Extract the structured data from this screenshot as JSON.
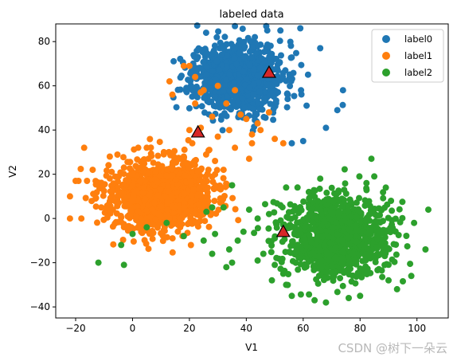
{
  "watermark": "CSDN @树下一朵云",
  "chart_data": {
    "type": "scatter",
    "title": "labeled data",
    "xlabel": "V1",
    "ylabel": "V2",
    "xlim": [
      -27,
      111
    ],
    "ylim": [
      -45,
      88
    ],
    "xticks": [
      -20,
      0,
      20,
      40,
      60,
      80,
      100
    ],
    "yticks": [
      -40,
      -20,
      0,
      20,
      40,
      60,
      80
    ],
    "xtick_labels": [
      "−20",
      "0",
      "20",
      "40",
      "60",
      "80",
      "100"
    ],
    "ytick_labels": [
      "−40",
      "−20",
      "0",
      "20",
      "40",
      "60",
      "80"
    ],
    "grid": false,
    "legend_position": "top-right",
    "series": [
      {
        "name": "label0",
        "color": "#1f77b4",
        "cluster": {
          "center": [
            37,
            64
          ],
          "spread": [
            8,
            8
          ],
          "count": 900,
          "seed": 11
        },
        "points": [
          [
            36,
            87
          ],
          [
            47,
            87
          ],
          [
            52,
            85
          ],
          [
            59,
            86
          ],
          [
            66,
            77
          ],
          [
            74,
            58
          ],
          [
            72,
            49
          ],
          [
            68,
            41
          ],
          [
            60,
            35
          ],
          [
            56,
            34
          ],
          [
            35,
            53
          ],
          [
            32,
            77
          ],
          [
            33,
            88
          ],
          [
            23,
            73
          ],
          [
            26,
            65
          ],
          [
            43,
            82
          ]
        ]
      },
      {
        "name": "label1",
        "color": "#ff7f0e",
        "cluster": {
          "center": [
            10,
            10
          ],
          "spread": [
            9,
            8
          ],
          "count": 1100,
          "seed": 23
        },
        "points": [
          [
            -22,
            10
          ],
          [
            -22,
            0
          ],
          [
            -18,
            0
          ],
          [
            -17,
            32
          ],
          [
            -19,
            17
          ],
          [
            -13,
            9
          ],
          [
            2,
            32
          ],
          [
            5,
            32
          ],
          [
            11,
            30
          ],
          [
            11,
            29
          ],
          [
            19,
            25
          ],
          [
            29,
            26
          ],
          [
            41,
            27
          ],
          [
            42,
            34
          ],
          [
            42,
            38
          ],
          [
            50,
            36
          ],
          [
            53,
            34
          ],
          [
            38,
            47
          ],
          [
            45,
            40
          ],
          [
            34,
            40
          ],
          [
            30,
            37
          ],
          [
            36,
            32
          ],
          [
            20,
            40
          ],
          [
            24,
            57
          ],
          [
            22,
            64
          ],
          [
            18,
            69
          ],
          [
            13,
            62
          ],
          [
            20,
            69
          ],
          [
            25,
            58
          ],
          [
            33,
            52
          ],
          [
            28,
            46
          ],
          [
            22,
            52
          ],
          [
            40,
            45
          ],
          [
            44,
            43
          ],
          [
            48,
            48
          ],
          [
            36,
            58
          ],
          [
            30,
            60
          ],
          [
            14,
            56
          ],
          [
            24,
            41
          ],
          [
            27,
            31
          ],
          [
            21,
            34
          ],
          [
            18,
            28
          ],
          [
            0,
            20
          ],
          [
            -8,
            28
          ],
          [
            -3,
            23
          ],
          [
            -20,
            17
          ],
          [
            -14,
            22
          ],
          [
            -11,
            5
          ],
          [
            -16,
            17
          ],
          [
            4,
            26
          ],
          [
            29,
            20
          ],
          [
            32,
            22
          ],
          [
            26,
            13
          ]
        ]
      },
      {
        "name": "label2",
        "color": "#2ca02c",
        "cluster": {
          "center": [
            72,
            -8
          ],
          "spread": [
            9,
            9
          ],
          "count": 1000,
          "seed": 37
        },
        "points": [
          [
            -12,
            -20
          ],
          [
            -3,
            -21
          ],
          [
            -4,
            -12
          ],
          [
            0,
            -7
          ],
          [
            5,
            -4
          ],
          [
            12,
            -2
          ],
          [
            18,
            -8
          ],
          [
            25,
            -10
          ],
          [
            28,
            -16
          ],
          [
            29,
            -7
          ],
          [
            33,
            -22
          ],
          [
            34,
            -14
          ],
          [
            35,
            -20
          ],
          [
            37,
            -10
          ],
          [
            35,
            15
          ],
          [
            32,
            5
          ],
          [
            28,
            5
          ],
          [
            26,
            3
          ],
          [
            44,
            -19
          ],
          [
            46,
            -16
          ],
          [
            49,
            -28
          ],
          [
            50,
            -21
          ],
          [
            53,
            -25
          ],
          [
            54,
            -30
          ],
          [
            68,
            -38
          ],
          [
            64,
            -37
          ],
          [
            56,
            -35
          ],
          [
            50,
            -9
          ],
          [
            48,
            2
          ],
          [
            52,
            6
          ],
          [
            54,
            14
          ],
          [
            58,
            14
          ],
          [
            66,
            18
          ],
          [
            62,
            12
          ],
          [
            84,
            27
          ],
          [
            85,
            19
          ],
          [
            99,
            -2
          ],
          [
            98,
            -26
          ],
          [
            104,
            4
          ],
          [
            103,
            -14
          ],
          [
            93,
            -32
          ],
          [
            90,
            -28
          ],
          [
            80,
            -35
          ],
          [
            76,
            -36
          ],
          [
            41,
            4
          ],
          [
            44,
            0
          ],
          [
            39,
            -6
          ]
        ]
      }
    ],
    "centers": [
      [
        48,
        66
      ],
      [
        23,
        39
      ],
      [
        53,
        -6
      ]
    ],
    "center_color": "#d62728"
  }
}
